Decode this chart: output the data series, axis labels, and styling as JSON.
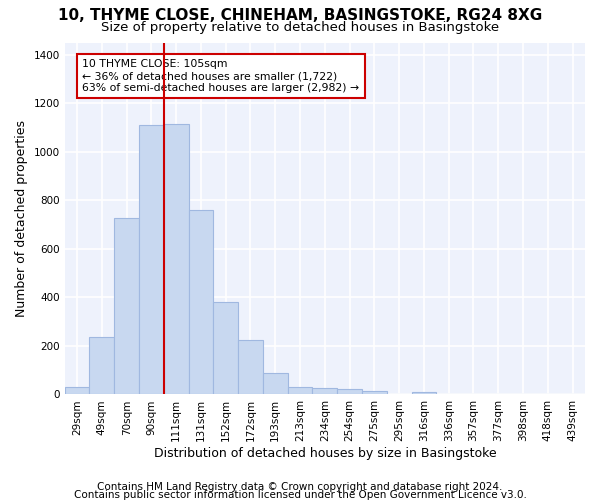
{
  "title": "10, THYME CLOSE, CHINEHAM, BASINGSTOKE, RG24 8XG",
  "subtitle": "Size of property relative to detached houses in Basingstoke",
  "xlabel": "Distribution of detached houses by size in Basingstoke",
  "ylabel": "Number of detached properties",
  "categories": [
    "29sqm",
    "49sqm",
    "70sqm",
    "90sqm",
    "111sqm",
    "131sqm",
    "152sqm",
    "172sqm",
    "193sqm",
    "213sqm",
    "234sqm",
    "254sqm",
    "275sqm",
    "295sqm",
    "316sqm",
    "336sqm",
    "357sqm",
    "377sqm",
    "398sqm",
    "418sqm",
    "439sqm"
  ],
  "values": [
    30,
    235,
    725,
    1110,
    1115,
    760,
    380,
    225,
    90,
    30,
    25,
    22,
    15,
    0,
    10,
    0,
    0,
    0,
    0,
    0,
    0
  ],
  "bar_color": "#c8d8f0",
  "bar_edge_color": "#a0b8e0",
  "bar_width": 1.0,
  "vline_x": 4.0,
  "vline_color": "#cc0000",
  "annotation_text": "10 THYME CLOSE: 105sqm\n← 36% of detached houses are smaller (1,722)\n63% of semi-detached houses are larger (2,982) →",
  "annotation_box_color": "#ffffff",
  "annotation_box_edge": "#cc0000",
  "ylim": [
    0,
    1450
  ],
  "yticks": [
    0,
    200,
    400,
    600,
    800,
    1000,
    1200,
    1400
  ],
  "footer1": "Contains HM Land Registry data © Crown copyright and database right 2024.",
  "footer2": "Contains public sector information licensed under the Open Government Licence v3.0.",
  "bg_color": "#ffffff",
  "plot_bg_color": "#eef2fc",
  "grid_color": "#ffffff",
  "title_fontsize": 11,
  "subtitle_fontsize": 9.5,
  "axis_label_fontsize": 9,
  "tick_fontsize": 7.5,
  "footer_fontsize": 7.5
}
